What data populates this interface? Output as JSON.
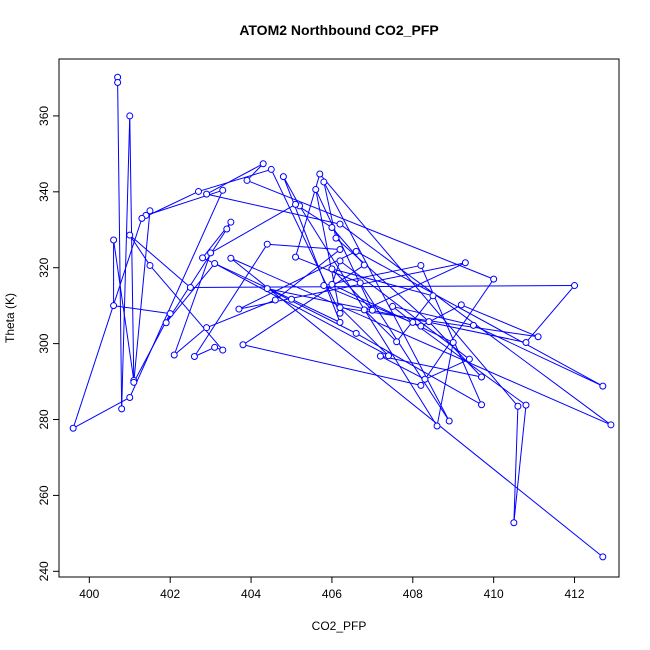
{
  "chart_data": {
    "type": "line",
    "title": "ATOM2 Northbound CO2_PFP",
    "xlabel": "CO2_PFP",
    "ylabel": "Theta (K)",
    "xlim": [
      399.25,
      413.1
    ],
    "ylim": [
      238.5,
      375.0
    ],
    "x_ticks": [
      400,
      402,
      404,
      406,
      408,
      410,
      412
    ],
    "y_ticks": [
      240,
      260,
      280,
      300,
      320,
      340,
      360
    ],
    "x_tick_labels": [
      "400",
      "402",
      "404",
      "406",
      "408",
      "410",
      "412"
    ],
    "y_tick_labels": [
      "240",
      "260",
      "280",
      "300",
      "320",
      "340",
      "360"
    ],
    "grid": false,
    "marker": "open-circle",
    "color": "#0000ff",
    "series": [
      {
        "values": [
          [
            400.7,
            370.2
          ],
          [
            400.7,
            368.8
          ],
          [
            400.8,
            282.8
          ],
          [
            401.0,
            360.0
          ],
          [
            401.1,
            290.3
          ],
          [
            400.6,
            327.3
          ],
          [
            400.6,
            310.0
          ],
          [
            402.0,
            307.9
          ],
          [
            401.1,
            289.8
          ],
          [
            401.5,
            335.0
          ],
          [
            401.4,
            333.8
          ],
          [
            403.3,
            340.4
          ],
          [
            401.0,
            285.8
          ],
          [
            399.6,
            277.7
          ],
          [
            401.3,
            333.0
          ],
          [
            402.7,
            340.1
          ],
          [
            404.5,
            345.9
          ],
          [
            406.2,
            308.0
          ],
          [
            405.6,
            340.6
          ],
          [
            407.0,
            308.8
          ],
          [
            406.0,
            319.7
          ],
          [
            408.5,
            312.6
          ],
          [
            407.6,
            300.5
          ],
          [
            406.8,
            308.9
          ],
          [
            409.3,
            321.3
          ],
          [
            403.7,
            309.1
          ],
          [
            406.6,
            324.3
          ],
          [
            412.7,
            288.8
          ],
          [
            409.5,
            304.8
          ],
          [
            407.5,
            309.8
          ],
          [
            408.0,
            305.6
          ],
          [
            410.8,
            283.8
          ],
          [
            410.5,
            252.8
          ],
          [
            410.6,
            283.5
          ],
          [
            405.7,
            344.7
          ],
          [
            405.1,
            322.8
          ],
          [
            406.7,
            316.0
          ],
          [
            408.9,
            279.6
          ],
          [
            405.8,
            342.6
          ],
          [
            406.1,
            327.8
          ],
          [
            408.4,
            305.8
          ],
          [
            409.7,
            291.2
          ],
          [
            407.2,
            296.7
          ],
          [
            408.3,
            290.6
          ],
          [
            409.4,
            295.9
          ],
          [
            406.2,
            321.8
          ],
          [
            406.0,
            315.6
          ],
          [
            409.0,
            300.3
          ],
          [
            408.6,
            278.3
          ],
          [
            405.2,
            336.3
          ],
          [
            404.8,
            344.0
          ],
          [
            406.2,
            305.6
          ],
          [
            405.0,
            311.7
          ],
          [
            402.8,
            322.6
          ],
          [
            403.5,
            332.0
          ],
          [
            403.4,
            330.2
          ],
          [
            401.9,
            305.5
          ],
          [
            403.1,
            321.1
          ],
          [
            407.4,
            296.8
          ],
          [
            406.2,
            309.5
          ],
          [
            411.1,
            301.8
          ],
          [
            409.2,
            310.2
          ],
          [
            408.2,
            304.6
          ],
          [
            405.8,
            315.3
          ],
          [
            408.2,
            320.6
          ],
          [
            409.7,
            283.9
          ],
          [
            406.6,
            302.7
          ],
          [
            404.4,
            314.5
          ],
          [
            410.8,
            300.3
          ],
          [
            412.0,
            315.3
          ],
          [
            402.5,
            314.8
          ],
          [
            401.0,
            328.6
          ],
          [
            401.5,
            320.6
          ],
          [
            403.3,
            298.3
          ],
          [
            403.1,
            299.0
          ],
          [
            402.6,
            296.6
          ],
          [
            404.4,
            326.2
          ],
          [
            406.2,
            324.8
          ],
          [
            404.6,
            311.5
          ],
          [
            402.9,
            304.2
          ],
          [
            402.1,
            297.0
          ],
          [
            403.0,
            323.9
          ],
          [
            405.1,
            336.7
          ],
          [
            406.0,
            330.6
          ],
          [
            406.8,
            320.7
          ],
          [
            403.8,
            299.7
          ],
          [
            408.2,
            289.0
          ],
          [
            410.0,
            317.0
          ],
          [
            403.9,
            343.0
          ],
          [
            404.3,
            347.4
          ],
          [
            402.9,
            339.4
          ],
          [
            406.2,
            331.5
          ],
          [
            412.9,
            278.6
          ],
          [
            403.5,
            322.5
          ],
          [
            412.7,
            243.8
          ]
        ]
      }
    ]
  }
}
